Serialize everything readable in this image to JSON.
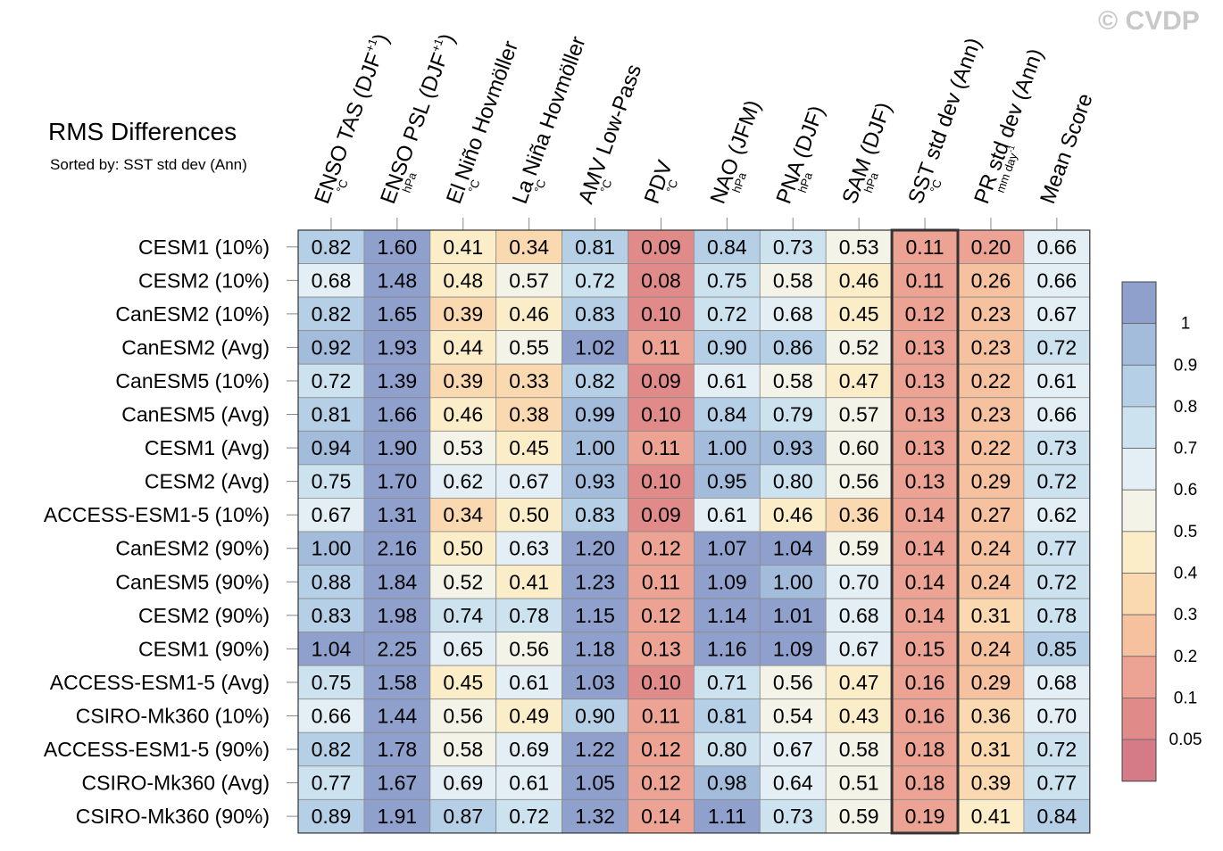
{
  "watermark": "© CVDP",
  "chart_data": {
    "type": "heatmap",
    "title": "RMS Differences",
    "subtitle": "Sorted by: SST std dev (Ann)",
    "columns": [
      {
        "label": "ENSO TAS (DJF+1)",
        "label_main": "ENSO TAS (DJF",
        "label_sup": "+1",
        "label_end": ")",
        "unit": "°C"
      },
      {
        "label": "ENSO PSL (DJF+1)",
        "label_main": "ENSO PSL (DJF",
        "label_sup": "+1",
        "label_end": ")",
        "unit": "hPa"
      },
      {
        "label": "El Niño Hovmöller",
        "label_main": "El Niño Hovmöller",
        "unit": "°C"
      },
      {
        "label": "La Niña Hovmöller",
        "label_main": "La Niña Hovmöller",
        "unit": "°C"
      },
      {
        "label": "AMV Low-Pass",
        "label_main": "AMV Low-Pass",
        "unit": "°C"
      },
      {
        "label": "PDV",
        "label_main": "PDV",
        "unit": "°C"
      },
      {
        "label": "NAO (JFM)",
        "label_main": "NAO (JFM)",
        "unit": "hPa"
      },
      {
        "label": "PNA (DJF)",
        "label_main": "PNA (DJF)",
        "unit": "hPa"
      },
      {
        "label": "SAM (DJF)",
        "label_main": "SAM (DJF)",
        "unit": "hPa"
      },
      {
        "label": "SST std dev (Ann)",
        "label_main": "SST std dev (Ann)",
        "unit": "°C"
      },
      {
        "label": "PR std dev (Ann)",
        "label_main": "PR std dev (Ann)",
        "unit": "mm day-1",
        "unit_main": "mm day",
        "unit_sup": "-1"
      },
      {
        "label": "Mean Score",
        "label_main": "Mean Score",
        "unit": ""
      }
    ],
    "rows": [
      "CESM1 (10%)",
      "CESM2 (10%)",
      "CanESM2 (10%)",
      "CanESM2 (Avg)",
      "CanESM5 (10%)",
      "CanESM5 (Avg)",
      "CESM1 (Avg)",
      "CESM2 (Avg)",
      "ACCESS-ESM1-5 (10%)",
      "CanESM2 (90%)",
      "CanESM5 (90%)",
      "CESM2 (90%)",
      "CESM1 (90%)",
      "ACCESS-ESM1-5 (Avg)",
      "CSIRO-Mk360 (10%)",
      "ACCESS-ESM1-5 (90%)",
      "CSIRO-Mk360 (Avg)",
      "CSIRO-Mk360 (90%)"
    ],
    "values": [
      [
        "0.82",
        "1.60",
        "0.41",
        "0.34",
        "0.81",
        "0.09",
        "0.84",
        "0.73",
        "0.53",
        "0.11",
        "0.20",
        "0.66"
      ],
      [
        "0.68",
        "1.48",
        "0.48",
        "0.57",
        "0.72",
        "0.08",
        "0.75",
        "0.58",
        "0.46",
        "0.11",
        "0.26",
        "0.66"
      ],
      [
        "0.82",
        "1.65",
        "0.39",
        "0.46",
        "0.83",
        "0.10",
        "0.72",
        "0.68",
        "0.45",
        "0.12",
        "0.23",
        "0.67"
      ],
      [
        "0.92",
        "1.93",
        "0.44",
        "0.55",
        "1.02",
        "0.11",
        "0.90",
        "0.86",
        "0.52",
        "0.13",
        "0.23",
        "0.72"
      ],
      [
        "0.72",
        "1.39",
        "0.39",
        "0.33",
        "0.82",
        "0.09",
        "0.61",
        "0.58",
        "0.47",
        "0.13",
        "0.22",
        "0.61"
      ],
      [
        "0.81",
        "1.66",
        "0.46",
        "0.38",
        "0.99",
        "0.10",
        "0.84",
        "0.79",
        "0.57",
        "0.13",
        "0.23",
        "0.66"
      ],
      [
        "0.94",
        "1.90",
        "0.53",
        "0.45",
        "1.00",
        "0.11",
        "1.00",
        "0.93",
        "0.60",
        "0.13",
        "0.22",
        "0.73"
      ],
      [
        "0.75",
        "1.70",
        "0.62",
        "0.67",
        "0.93",
        "0.10",
        "0.95",
        "0.80",
        "0.56",
        "0.13",
        "0.29",
        "0.72"
      ],
      [
        "0.67",
        "1.31",
        "0.34",
        "0.50",
        "0.83",
        "0.09",
        "0.61",
        "0.46",
        "0.36",
        "0.14",
        "0.27",
        "0.62"
      ],
      [
        "1.00",
        "2.16",
        "0.50",
        "0.63",
        "1.20",
        "0.12",
        "1.07",
        "1.04",
        "0.59",
        "0.14",
        "0.24",
        "0.77"
      ],
      [
        "0.88",
        "1.84",
        "0.52",
        "0.41",
        "1.23",
        "0.11",
        "1.09",
        "1.00",
        "0.70",
        "0.14",
        "0.24",
        "0.72"
      ],
      [
        "0.83",
        "1.98",
        "0.74",
        "0.78",
        "1.15",
        "0.12",
        "1.14",
        "1.01",
        "0.68",
        "0.14",
        "0.31",
        "0.78"
      ],
      [
        "1.04",
        "2.25",
        "0.65",
        "0.56",
        "1.18",
        "0.13",
        "1.16",
        "1.09",
        "0.67",
        "0.15",
        "0.24",
        "0.85"
      ],
      [
        "0.75",
        "1.58",
        "0.45",
        "0.61",
        "1.03",
        "0.10",
        "0.71",
        "0.56",
        "0.47",
        "0.16",
        "0.29",
        "0.68"
      ],
      [
        "0.66",
        "1.44",
        "0.56",
        "0.49",
        "0.90",
        "0.11",
        "0.81",
        "0.54",
        "0.43",
        "0.16",
        "0.36",
        "0.70"
      ],
      [
        "0.82",
        "1.78",
        "0.58",
        "0.69",
        "1.22",
        "0.12",
        "0.80",
        "0.67",
        "0.58",
        "0.18",
        "0.31",
        "0.72"
      ],
      [
        "0.77",
        "1.67",
        "0.69",
        "0.61",
        "1.05",
        "0.12",
        "0.98",
        "0.64",
        "0.51",
        "0.18",
        "0.39",
        "0.77"
      ],
      [
        "0.89",
        "1.91",
        "0.87",
        "0.72",
        "1.32",
        "0.14",
        "1.11",
        "0.73",
        "0.59",
        "0.19",
        "0.41",
        "0.84"
      ]
    ],
    "highlighted_column": "SST std dev (Ann)",
    "colorbar": {
      "bins": [
        {
          "max": 0.05,
          "color": "#d47b87"
        },
        {
          "max": 0.1,
          "color": "#e08a8a"
        },
        {
          "max": 0.2,
          "color": "#eda393"
        },
        {
          "max": 0.3,
          "color": "#f6c19f"
        },
        {
          "max": 0.4,
          "color": "#fbd9b0"
        },
        {
          "max": 0.5,
          "color": "#fcedc9"
        },
        {
          "max": 0.6,
          "color": "#f3f3e8"
        },
        {
          "max": 0.7,
          "color": "#e3eff5"
        },
        {
          "max": 0.8,
          "color": "#cde2ef"
        },
        {
          "max": 0.9,
          "color": "#b5d0e6"
        },
        {
          "max": 1.0,
          "color": "#a3bcdb"
        },
        {
          "max": 999,
          "color": "#8fa0cd"
        }
      ],
      "tick_labels": [
        "1",
        "0.9",
        "0.8",
        "0.7",
        "0.6",
        "0.5",
        "0.4",
        "0.3",
        "0.2",
        "0.1",
        "0.05"
      ],
      "placement": "right"
    }
  }
}
